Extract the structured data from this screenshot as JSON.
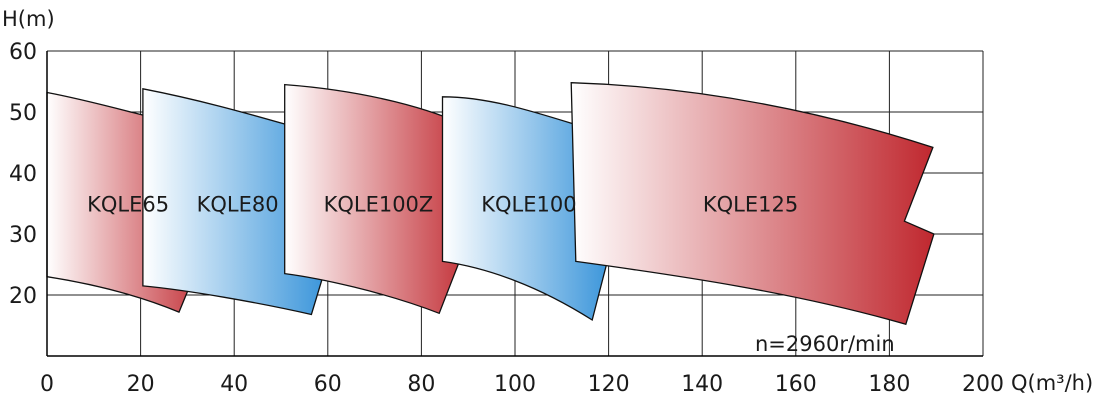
{
  "chart_data": {
    "type": "area",
    "xlabel": "Q(m³/h)",
    "ylabel": "H(m)",
    "xlim": [
      0,
      200
    ],
    "ylim": [
      10,
      60
    ],
    "xticks": [
      0,
      20,
      40,
      60,
      80,
      100,
      120,
      140,
      160,
      180,
      200
    ],
    "yticks": [
      20,
      30,
      40,
      50,
      60
    ],
    "grid": true,
    "annotation": "n=2960r/min",
    "colors": {
      "red": "#c0282f",
      "blue": "#2f8fd8",
      "grid": "#222222"
    },
    "regions": [
      {
        "name": "KQLE65",
        "color": "red",
        "top": [
          [
            0,
            53.2
          ],
          [
            12,
            51.5
          ],
          [
            24,
            48.5
          ],
          [
            35.5,
            46.8
          ]
        ],
        "notch": [
          [
            35.5,
            46.8
          ],
          [
            28.6,
            31.5
          ],
          [
            34.8,
            29.5
          ]
        ],
        "bottom": [
          [
            28.2,
            17.2
          ],
          [
            20,
            19.8
          ],
          [
            10,
            21.8
          ],
          [
            0,
            23.0
          ]
        ]
      },
      {
        "name": "KQLE80",
        "color": "blue",
        "top": [
          [
            20.5,
            53.8
          ],
          [
            38,
            51.2
          ],
          [
            51,
            47.8
          ],
          [
            61.8,
            45.7
          ]
        ],
        "notch": [
          [
            61.8,
            45.7
          ],
          [
            55.8,
            31.0
          ],
          [
            61.3,
            29.0
          ]
        ],
        "bottom": [
          [
            56.5,
            16.8
          ],
          [
            45,
            18.8
          ],
          [
            30,
            20.8
          ],
          [
            20.5,
            21.5
          ]
        ]
      },
      {
        "name": "KQLE100Z",
        "color": "red",
        "top": [
          [
            50.8,
            54.5
          ],
          [
            68,
            53.5
          ],
          [
            83,
            50.5
          ],
          [
            91.7,
            46.9
          ]
        ],
        "notch": [
          [
            91.7,
            46.9
          ],
          [
            85.3,
            31.6
          ],
          [
            90.2,
            29.6
          ]
        ],
        "bottom": [
          [
            83.8,
            17.0
          ],
          [
            72,
            20.5
          ],
          [
            58,
            22.8
          ],
          [
            50.8,
            23.5
          ]
        ]
      },
      {
        "name": "KQLE100",
        "color": "blue",
        "top": [
          [
            84.5,
            52.5
          ],
          [
            97,
            52.5
          ],
          [
            109,
            48.6
          ],
          [
            122.3,
            45.8
          ]
        ],
        "notch": [
          [
            122.3,
            45.8
          ],
          [
            116,
            31.8
          ],
          [
            121.2,
            29.9
          ]
        ],
        "bottom": [
          [
            116.5,
            15.9
          ],
          [
            105,
            21.5
          ],
          [
            94,
            24.5
          ],
          [
            84.5,
            25.5
          ]
        ]
      },
      {
        "name": "KQLE125",
        "color": "red",
        "top": [
          [
            112,
            54.8
          ],
          [
            145,
            54.0
          ],
          [
            172,
            48.5
          ],
          [
            189.3,
            44.2
          ]
        ],
        "notch": [
          [
            189.3,
            44.2
          ],
          [
            183.2,
            32.1
          ],
          [
            189.5,
            30.0
          ]
        ],
        "bottom": [
          [
            183.5,
            15.2
          ],
          [
            160,
            20.4
          ],
          [
            135,
            23.2
          ],
          [
            113,
            25.5
          ]
        ]
      }
    ]
  }
}
